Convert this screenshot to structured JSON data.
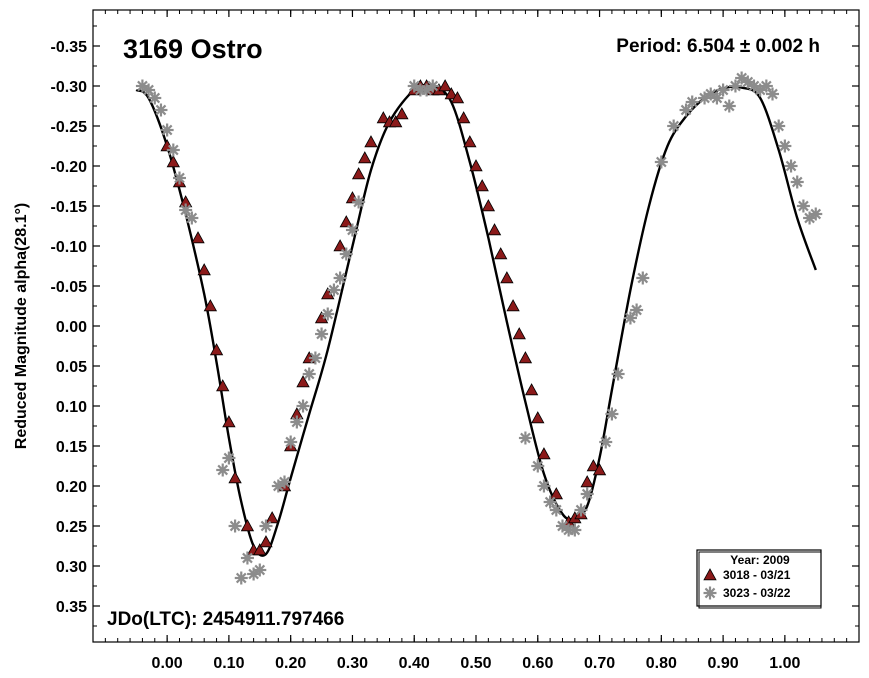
{
  "chart_data": {
    "type": "scatter",
    "title": "3169 Ostro",
    "period_label": "Period: 6.504 ± 0.002 h",
    "epoch_label": "JDo(LTC): 2454911.797466",
    "xlabel": "",
    "ylabel": "Reduced Magnitude alpha(28.1°)",
    "xlim": [
      -0.12,
      1.12
    ],
    "ylim": [
      -0.395,
      0.395
    ],
    "y_inverted": true,
    "x_ticks": [
      "0.00",
      "0.10",
      "0.20",
      "0.30",
      "0.40",
      "0.50",
      "0.60",
      "0.70",
      "0.80",
      "0.90",
      "1.00"
    ],
    "x_tick_values": [
      0.0,
      0.1,
      0.2,
      0.3,
      0.4,
      0.5,
      0.6,
      0.7,
      0.8,
      0.9,
      1.0
    ],
    "y_ticks": [
      "-0.35",
      "-0.30",
      "-0.25",
      "-0.20",
      "-0.15",
      "-0.10",
      "-0.05",
      "0.00",
      "0.05",
      "0.10",
      "0.15",
      "0.20",
      "0.25",
      "0.30",
      "0.35"
    ],
    "y_tick_values": [
      -0.35,
      -0.3,
      -0.25,
      -0.2,
      -0.15,
      -0.1,
      -0.05,
      0.0,
      0.05,
      0.1,
      0.15,
      0.2,
      0.25,
      0.3,
      0.35
    ],
    "grid": false,
    "legend": {
      "placement": "bottom-right",
      "title": "Year: 2009",
      "entries": [
        {
          "label": "3018 - 03/21",
          "marker": "triangle",
          "color": "#8b1a1a"
        },
        {
          "label": "3023 - 03/22",
          "marker": "asterisk",
          "color": "#8c8c8c"
        }
      ]
    },
    "fit_curve": {
      "color": "#000000",
      "x": [
        -0.05,
        -0.03,
        0.0,
        0.03,
        0.06,
        0.08,
        0.1,
        0.12,
        0.14,
        0.16,
        0.18,
        0.2,
        0.23,
        0.26,
        0.3,
        0.33,
        0.36,
        0.4,
        0.43,
        0.46,
        0.49,
        0.52,
        0.55,
        0.58,
        0.61,
        0.64,
        0.66,
        0.68,
        0.7,
        0.72,
        0.75,
        0.78,
        0.81,
        0.84,
        0.87,
        0.9,
        0.93,
        0.96,
        0.99,
        1.02,
        1.05
      ],
      "y": [
        -0.295,
        -0.285,
        -0.225,
        -0.14,
        -0.04,
        0.045,
        0.14,
        0.22,
        0.275,
        0.285,
        0.245,
        0.19,
        0.11,
        0.03,
        -0.1,
        -0.195,
        -0.255,
        -0.295,
        -0.3,
        -0.28,
        -0.205,
        -0.11,
        -0.005,
        0.095,
        0.185,
        0.235,
        0.24,
        0.225,
        0.165,
        0.08,
        -0.045,
        -0.15,
        -0.225,
        -0.262,
        -0.285,
        -0.297,
        -0.298,
        -0.285,
        -0.22,
        -0.135,
        -0.07
      ]
    },
    "series": [
      {
        "name": "3018 - 03/21",
        "marker": "triangle",
        "color": "#8b1a1a",
        "x": [
          0.0,
          0.01,
          0.02,
          0.03,
          0.05,
          0.06,
          0.07,
          0.08,
          0.09,
          0.1,
          0.11,
          0.13,
          0.14,
          0.15,
          0.16,
          0.17,
          0.19,
          0.2,
          0.21,
          0.22,
          0.23,
          0.25,
          0.26,
          0.28,
          0.29,
          0.3,
          0.31,
          0.32,
          0.33,
          0.35,
          0.36,
          0.37,
          0.38,
          0.4,
          0.41,
          0.42,
          0.43,
          0.44,
          0.45,
          0.46,
          0.47,
          0.48,
          0.49,
          0.5,
          0.51,
          0.52,
          0.53,
          0.54,
          0.55,
          0.56,
          0.57,
          0.58,
          0.59,
          0.6,
          0.61,
          0.63,
          0.65,
          0.66,
          0.67,
          0.68,
          0.69,
          0.7
        ],
        "y": [
          -0.225,
          -0.205,
          -0.18,
          -0.155,
          -0.11,
          -0.07,
          -0.025,
          0.03,
          0.075,
          0.12,
          0.19,
          0.25,
          0.28,
          0.28,
          0.27,
          0.24,
          0.2,
          0.15,
          0.11,
          0.07,
          0.04,
          -0.01,
          -0.04,
          -0.1,
          -0.13,
          -0.16,
          -0.19,
          -0.21,
          -0.23,
          -0.26,
          -0.255,
          -0.255,
          -0.265,
          -0.295,
          -0.3,
          -0.3,
          -0.295,
          -0.295,
          -0.3,
          -0.29,
          -0.285,
          -0.26,
          -0.23,
          -0.2,
          -0.175,
          -0.15,
          -0.12,
          -0.09,
          -0.06,
          -0.025,
          0.01,
          0.04,
          0.08,
          0.115,
          0.16,
          0.21,
          0.245,
          0.24,
          0.235,
          0.195,
          0.175,
          0.18
        ]
      },
      {
        "name": "3023 - 03/22",
        "marker": "asterisk",
        "color": "#8c8c8c",
        "x": [
          -0.04,
          -0.03,
          -0.02,
          -0.01,
          0.0,
          0.01,
          0.02,
          0.03,
          0.04,
          0.09,
          0.1,
          0.11,
          0.12,
          0.13,
          0.14,
          0.15,
          0.16,
          0.18,
          0.19,
          0.2,
          0.21,
          0.22,
          0.23,
          0.24,
          0.25,
          0.26,
          0.27,
          0.28,
          0.29,
          0.3,
          0.31,
          0.4,
          0.41,
          0.42,
          0.43,
          0.58,
          0.6,
          0.61,
          0.62,
          0.63,
          0.64,
          0.65,
          0.66,
          0.67,
          0.68,
          0.71,
          0.72,
          0.73,
          0.75,
          0.76,
          0.77,
          0.8,
          0.82,
          0.84,
          0.85,
          0.87,
          0.88,
          0.89,
          0.9,
          0.91,
          0.92,
          0.93,
          0.94,
          0.95,
          0.96,
          0.97,
          0.98,
          0.99,
          1.0,
          1.01,
          1.02,
          1.03,
          1.04,
          1.05
        ],
        "y": [
          -0.3,
          -0.295,
          -0.285,
          -0.27,
          -0.245,
          -0.22,
          -0.185,
          -0.145,
          -0.135,
          0.18,
          0.165,
          0.25,
          0.315,
          0.29,
          0.31,
          0.305,
          0.25,
          0.2,
          0.195,
          0.145,
          0.12,
          0.1,
          0.06,
          0.04,
          0.01,
          -0.015,
          -0.045,
          -0.06,
          -0.09,
          -0.12,
          -0.155,
          -0.3,
          -0.295,
          -0.295,
          -0.3,
          0.14,
          0.175,
          0.2,
          0.22,
          0.23,
          0.25,
          0.255,
          0.255,
          0.23,
          0.21,
          0.145,
          0.11,
          0.06,
          -0.01,
          -0.02,
          -0.06,
          -0.205,
          -0.25,
          -0.27,
          -0.28,
          -0.285,
          -0.29,
          -0.285,
          -0.295,
          -0.275,
          -0.3,
          -0.31,
          -0.305,
          -0.3,
          -0.295,
          -0.3,
          -0.29,
          -0.25,
          -0.225,
          -0.2,
          -0.18,
          -0.15,
          -0.135,
          -0.14
        ]
      }
    ]
  }
}
